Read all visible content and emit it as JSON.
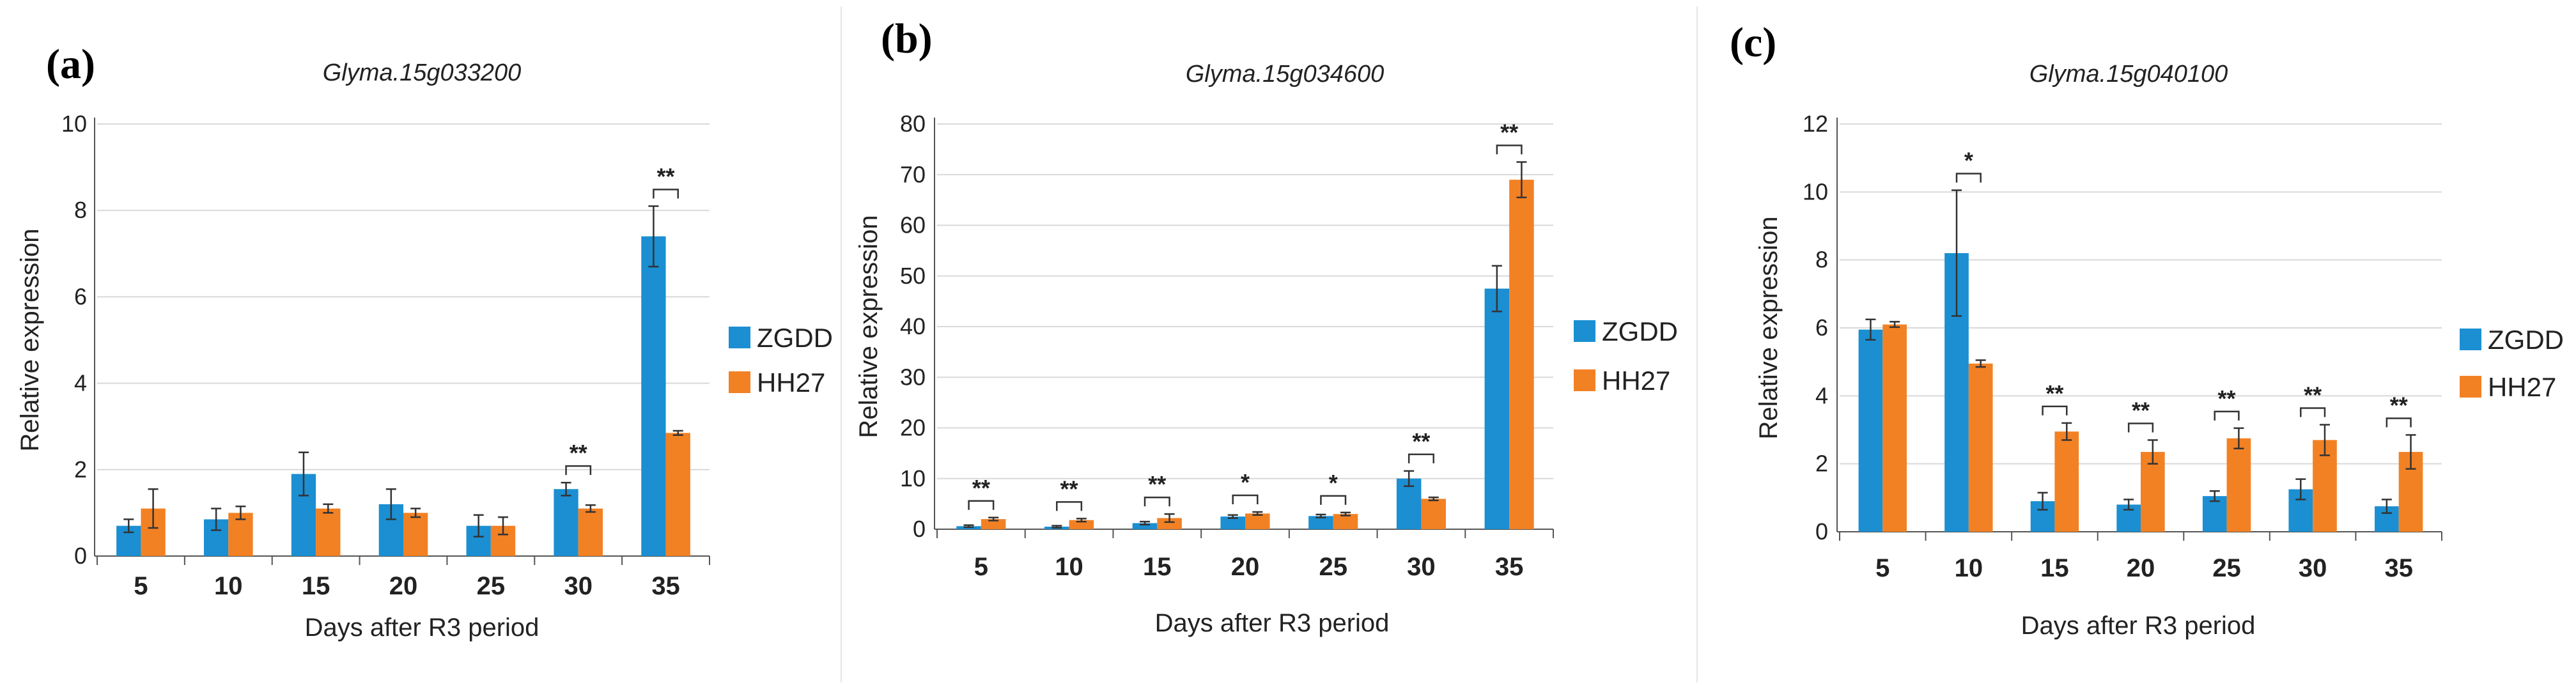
{
  "chart_data": [
    {
      "type": "bar",
      "panel_label": "(a)",
      "title": "Glyma.15g033200",
      "xlabel": "Days after R3 period",
      "ylabel": "Relative expression",
      "ylim": [
        0,
        10
      ],
      "yticks": [
        0,
        2,
        4,
        6,
        8,
        10
      ],
      "categories": [
        "5",
        "10",
        "15",
        "20",
        "25",
        "30",
        "35"
      ],
      "grid": true,
      "legend_position": "right",
      "series": [
        {
          "name": "ZGDD",
          "color": "#1b8fd2",
          "values": [
            0.7,
            0.85,
            1.9,
            1.2,
            0.7,
            1.55,
            7.4
          ],
          "errors": [
            0.15,
            0.25,
            0.5,
            0.35,
            0.25,
            0.15,
            0.7
          ]
        },
        {
          "name": "HH27",
          "color": "#f28124",
          "values": [
            1.1,
            1.0,
            1.1,
            1.0,
            0.7,
            1.1,
            2.85
          ],
          "errors": [
            0.45,
            0.15,
            0.1,
            0.1,
            0.2,
            0.08,
            0.05
          ]
        }
      ],
      "significance": [
        {
          "category": "30",
          "label": "**"
        },
        {
          "category": "35",
          "label": "**"
        }
      ]
    },
    {
      "type": "bar",
      "panel_label": "(b)",
      "title": "Glyma.15g034600",
      "xlabel": "Days after R3 period",
      "ylabel": "Relative expression",
      "ylim": [
        0,
        80
      ],
      "yticks": [
        0,
        10,
        20,
        30,
        40,
        50,
        60,
        70,
        80
      ],
      "categories": [
        "5",
        "10",
        "15",
        "20",
        "25",
        "30",
        "35"
      ],
      "grid": true,
      "legend_position": "right",
      "series": [
        {
          "name": "ZGDD",
          "color": "#1b8fd2",
          "values": [
            0.6,
            0.5,
            1.2,
            2.5,
            2.6,
            10.0,
            47.5
          ],
          "errors": [
            0.2,
            0.2,
            0.3,
            0.3,
            0.3,
            1.5,
            4.5
          ]
        },
        {
          "name": "HH27",
          "color": "#f28124",
          "values": [
            2.0,
            1.8,
            2.2,
            3.1,
            3.0,
            6.0,
            69.0
          ],
          "errors": [
            0.3,
            0.3,
            0.8,
            0.3,
            0.3,
            0.3,
            3.5
          ]
        }
      ],
      "significance": [
        {
          "category": "5",
          "label": "**"
        },
        {
          "category": "10",
          "label": "**"
        },
        {
          "category": "15",
          "label": "**"
        },
        {
          "category": "20",
          "label": "*"
        },
        {
          "category": "25",
          "label": "*"
        },
        {
          "category": "30",
          "label": "**"
        },
        {
          "category": "35",
          "label": "**"
        }
      ]
    },
    {
      "type": "bar",
      "panel_label": "(c)",
      "title": "Glyma.15g040100",
      "xlabel": "Days after R3 period",
      "ylabel": "Relative expression",
      "ylim": [
        0,
        12
      ],
      "yticks": [
        0,
        2,
        4,
        6,
        8,
        10,
        12
      ],
      "categories": [
        "5",
        "10",
        "15",
        "20",
        "25",
        "30",
        "35"
      ],
      "grid": true,
      "legend_position": "right",
      "series": [
        {
          "name": "ZGDD",
          "color": "#1b8fd2",
          "values": [
            5.95,
            8.2,
            0.9,
            0.8,
            1.05,
            1.25,
            0.75
          ],
          "errors": [
            0.3,
            1.85,
            0.25,
            0.15,
            0.15,
            0.3,
            0.2
          ]
        },
        {
          "name": "HH27",
          "color": "#f28124",
          "values": [
            6.1,
            4.95,
            2.95,
            2.35,
            2.75,
            2.7,
            2.35
          ],
          "errors": [
            0.08,
            0.1,
            0.25,
            0.35,
            0.3,
            0.45,
            0.5
          ]
        }
      ],
      "significance": [
        {
          "category": "10",
          "label": "*"
        },
        {
          "category": "15",
          "label": "**"
        },
        {
          "category": "20",
          "label": "**"
        },
        {
          "category": "25",
          "label": "**"
        },
        {
          "category": "30",
          "label": "**"
        },
        {
          "category": "35",
          "label": "**"
        }
      ]
    }
  ]
}
